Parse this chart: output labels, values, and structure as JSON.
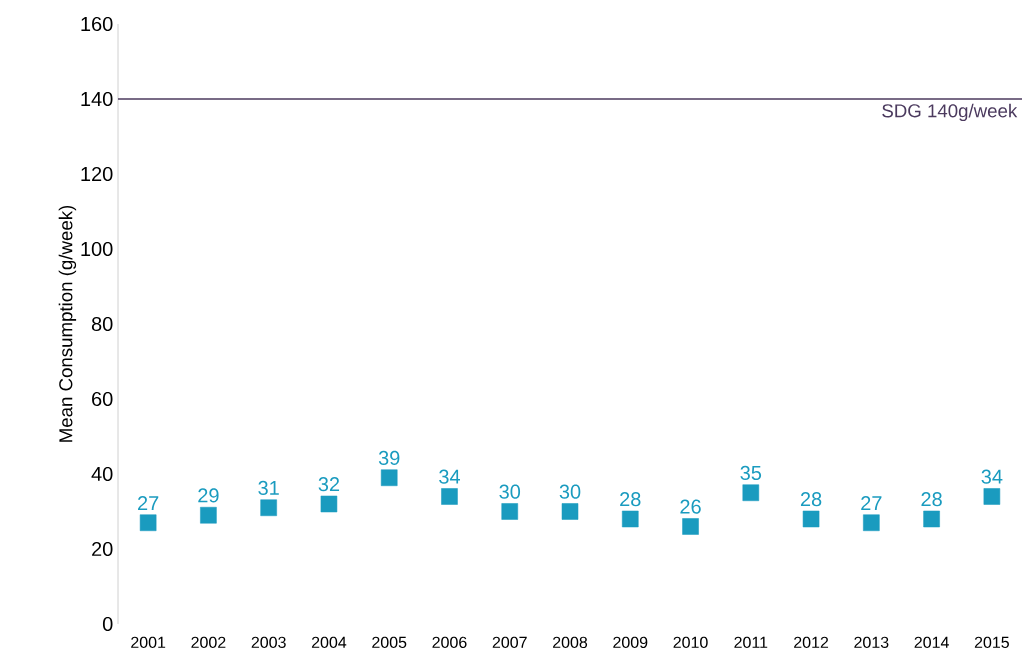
{
  "chart_data": {
    "type": "scatter",
    "ylabel": "Mean Consumption (g/week)",
    "categories": [
      "2001",
      "2002",
      "2003",
      "2004",
      "2005",
      "2006",
      "2007",
      "2008",
      "2009",
      "2010",
      "2011",
      "2012",
      "2013",
      "2014",
      "2015"
    ],
    "values": [
      27,
      29,
      31,
      32,
      39,
      34,
      30,
      30,
      28,
      26,
      35,
      28,
      27,
      28,
      34
    ],
    "color": "#1a9bbf",
    "marker": "square",
    "data_labels": true,
    "ylim": [
      0,
      160
    ],
    "yticks": [
      0,
      20,
      40,
      60,
      80,
      100,
      120,
      140,
      160
    ],
    "ref_lines": [
      {
        "axis": "y",
        "value": 140,
        "label": "SDG 140g/week",
        "color": "#4b3a5e"
      }
    ]
  }
}
